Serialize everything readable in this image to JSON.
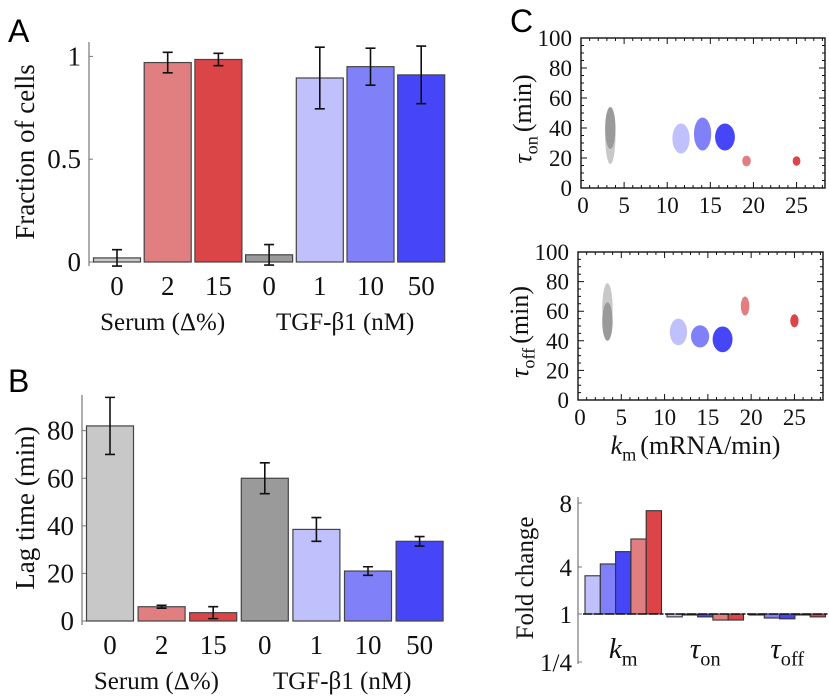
{
  "colors": {
    "serum_0": "#c8c8c8",
    "serum_2": "#e17f80",
    "serum_15": "#dc4548",
    "tgf_0": "#9a9a9a",
    "tgf_1": "#c0c0fc",
    "tgf_10": "#8080f8",
    "tgf_50": "#4646f8"
  },
  "chart_data": [
    {
      "panel": "A",
      "type": "bar",
      "categories": [
        "0",
        "2",
        "15",
        "0",
        "1",
        "10",
        "50"
      ],
      "group_labels": [
        "Serum (Δ%)",
        "TGF-β1 (nM)"
      ],
      "colors": [
        "#c8c8c8",
        "#e17f80",
        "#dc4548",
        "#9a9a9a",
        "#c0c0fc",
        "#8080f8",
        "#4646f8"
      ],
      "values": [
        0.02,
        0.97,
        0.985,
        0.035,
        0.895,
        0.95,
        0.91
      ],
      "errors": [
        0.04,
        0.05,
        0.03,
        0.05,
        0.15,
        0.09,
        0.14
      ],
      "ylabel": "Fraction of cells",
      "yticks": [
        "0",
        "0.5",
        "1"
      ],
      "ytick_values": [
        0,
        0.5,
        1
      ],
      "ylim": [
        0,
        1.07
      ]
    },
    {
      "panel": "B",
      "type": "bar",
      "categories": [
        "0",
        "2",
        "15",
        "0",
        "1",
        "10",
        "50"
      ],
      "group_labels": [
        "Serum (Δ%)",
        "TGF-β1 (nM)"
      ],
      "colors": [
        "#c8c8c8",
        "#e17f80",
        "#dc4548",
        "#9a9a9a",
        "#c0c0fc",
        "#8080f8",
        "#4646f8"
      ],
      "values": [
        82,
        6,
        3.5,
        60,
        38.5,
        21,
        33.5
      ],
      "errors": [
        12,
        0.6,
        2.5,
        6.5,
        5,
        1.8,
        2
      ],
      "ylabel": "Lag time (min)",
      "yticks": [
        "0",
        "20",
        "40",
        "60",
        "80"
      ],
      "ytick_values": [
        0,
        20,
        40,
        60,
        80
      ],
      "ylim": [
        0,
        95
      ]
    },
    {
      "panel": "C",
      "type": "scatter",
      "marker": "ellipse",
      "ylabel": {
        "symbol": "τ",
        "sub": "on",
        "unit": "(min)"
      },
      "xticks": [
        "0",
        "5",
        "10",
        "15",
        "20",
        "25"
      ],
      "xtick_values": [
        0,
        5,
        10,
        15,
        20,
        25
      ],
      "yticks": [
        "0",
        "20",
        "40",
        "60",
        "80",
        "100"
      ],
      "ytick_values": [
        0,
        20,
        40,
        60,
        80,
        100
      ],
      "xlim": [
        0,
        28.3
      ],
      "ylim": [
        0,
        100
      ],
      "points": [
        {
          "x": 3.4,
          "y": 35,
          "x_spread": 0.6,
          "y_spread": 19,
          "color": "#c8c8c8"
        },
        {
          "x": 3.4,
          "y": 40,
          "x_spread": 0.6,
          "y_spread": 14,
          "color": "#9a9a9a"
        },
        {
          "x": 11.6,
          "y": 33,
          "x_spread": 1.0,
          "y_spread": 10,
          "color": "#c0c0fc"
        },
        {
          "x": 14.1,
          "y": 36,
          "x_spread": 1.0,
          "y_spread": 11,
          "color": "#8080f8"
        },
        {
          "x": 16.7,
          "y": 34,
          "x_spread": 1.15,
          "y_spread": 9,
          "color": "#4646f8"
        },
        {
          "x": 19.2,
          "y": 18,
          "x_spread": 0.5,
          "y_spread": 3.6,
          "color": "#e17f80"
        },
        {
          "x": 25.0,
          "y": 18,
          "x_spread": 0.45,
          "y_spread": 3.2,
          "color": "#dc4548"
        }
      ]
    },
    {
      "panel": "C",
      "type": "scatter",
      "marker": "ellipse",
      "xlabel": {
        "symbol": "k",
        "sub": "m",
        "unit": "(mRNA/min)"
      },
      "ylabel": {
        "symbol": "τ",
        "sub": "off",
        "unit": "(min)"
      },
      "xticks": [
        "0",
        "5",
        "10",
        "15",
        "20",
        "25"
      ],
      "xtick_values": [
        0,
        5,
        10,
        15,
        20,
        25
      ],
      "yticks": [
        "0",
        "20",
        "40",
        "60",
        "80",
        "100"
      ],
      "ytick_values": [
        0,
        20,
        40,
        60,
        80,
        100
      ],
      "xlim": [
        0,
        28.3
      ],
      "ylim": [
        0,
        100
      ],
      "points": [
        {
          "x": 3.4,
          "y": 62,
          "x_spread": 0.6,
          "y_spread": 17,
          "color": "#c8c8c8"
        },
        {
          "x": 3.4,
          "y": 53,
          "x_spread": 0.6,
          "y_spread": 13,
          "color": "#9a9a9a"
        },
        {
          "x": 11.6,
          "y": 46,
          "x_spread": 1.0,
          "y_spread": 9,
          "color": "#c0c0fc"
        },
        {
          "x": 14.1,
          "y": 43,
          "x_spread": 1.05,
          "y_spread": 7.5,
          "color": "#8080f8"
        },
        {
          "x": 16.7,
          "y": 41,
          "x_spread": 1.15,
          "y_spread": 8.7,
          "color": "#4646f8"
        },
        {
          "x": 19.3,
          "y": 63.5,
          "x_spread": 0.5,
          "y_spread": 6.4,
          "color": "#e17f80"
        },
        {
          "x": 25.0,
          "y": 53.5,
          "x_spread": 0.48,
          "y_spread": 4.4,
          "color": "#dc4548"
        }
      ]
    },
    {
      "panel": "C",
      "type": "bar",
      "ylabel": "Fold change",
      "yticks": [
        "1/4",
        "1",
        "4",
        "8"
      ],
      "ytick_values": [
        0.25,
        1,
        4,
        8
      ],
      "baseline": 1,
      "groups": [
        {
          "symbol": "k",
          "sub": "m",
          "values": [
            3.44,
            4.19,
            4.96,
            5.75,
            7.52
          ]
        },
        {
          "symbol": "τ",
          "sub": "on",
          "values": [
            0.92,
            1.0,
            0.92,
            0.84,
            0.84
          ]
        },
        {
          "symbol": "τ",
          "sub": "off",
          "values": [
            1.0,
            0.89,
            0.87,
            1.0,
            0.92
          ]
        }
      ],
      "colors": [
        "#c0c0fc",
        "#8080f8",
        "#4646f8",
        "#e17f80",
        "#dc4548"
      ]
    }
  ]
}
